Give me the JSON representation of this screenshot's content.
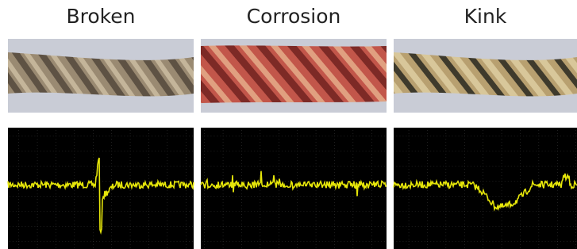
{
  "panels": [
    {
      "title": "Broken"
    },
    {
      "title": "Corrosion"
    },
    {
      "title": "Kink"
    }
  ]
}
